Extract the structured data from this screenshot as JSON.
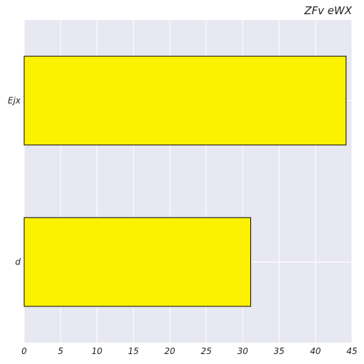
{
  "chart_data": {
    "type": "bar",
    "orientation": "horizontal",
    "title": "ZFv eWX",
    "xlabel": "",
    "ylabel": "",
    "categories": [
      "Ejx",
      "d"
    ],
    "values": [
      44.2,
      31.1
    ],
    "xlim": [
      0,
      45
    ],
    "xticks": [
      0,
      5,
      10,
      15,
      20,
      25,
      30,
      35,
      40,
      45
    ],
    "grid": true,
    "colors": {
      "bar_fill": "#fcf200",
      "bar_edge": "#000000",
      "plot_background": "#e8e8f2",
      "grid": "#ffffff"
    }
  }
}
